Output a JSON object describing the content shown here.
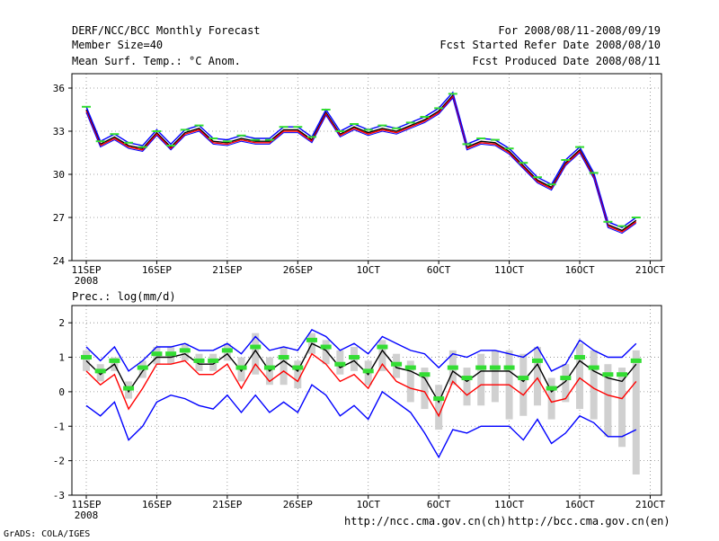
{
  "header": {
    "title": "DERF/NCC/BCC Monthly Forecast",
    "member_size": "Member Size=40",
    "variable": "Mean Surf. Temp.: °C Anom.",
    "period": "For 2008/08/11-2008/09/19",
    "started": "Fcst Started Refer Date 2008/08/10",
    "produced": "Fcst Produced Date 2008/08/11"
  },
  "footer": {
    "credit": "GrADS: COLA/IGES",
    "url_ncc": "http://ncc.cma.gov.cn(ch)",
    "url_bcc": "http://bcc.cma.gov.cn(en)"
  },
  "chart_data": [
    {
      "type": "line",
      "title": "Mean Surf. Temp.: °C Anom.",
      "ylim": [
        24,
        37
      ],
      "yticks": [
        24,
        27,
        30,
        33,
        36
      ],
      "x_tick_days": [
        0,
        5,
        10,
        15,
        20,
        25,
        30,
        35,
        40
      ],
      "x_tick_labels": [
        "11SEP",
        "16SEP",
        "21SEP",
        "26SEP",
        "1OCT",
        "6OCT",
        "11OCT",
        "16OCT",
        "21OCT"
      ],
      "year_label": "2008",
      "colors": {
        "mean": "#000000",
        "upper": "#0000ff",
        "lower": "#ff0000",
        "marker": "#33dd33"
      },
      "markers": [
        34.7,
        32.3,
        32.8,
        32.2,
        31.9,
        33.0,
        32.0,
        33.1,
        33.4,
        32.5,
        32.3,
        32.7,
        32.4,
        32.4,
        33.3,
        33.3,
        32.6,
        34.5,
        33.0,
        33.5,
        33.1,
        33.4,
        33.2,
        33.6,
        34.0,
        34.6,
        35.6,
        32.1,
        32.5,
        32.4,
        31.8,
        30.8,
        29.8,
        29.3,
        31.0,
        31.9,
        30.1,
        26.7,
        26.4,
        27.0
      ],
      "series": [
        {
          "name": "mean",
          "values": [
            34.5,
            32.1,
            32.6,
            32.0,
            31.8,
            32.9,
            31.9,
            32.9,
            33.2,
            32.3,
            32.2,
            32.5,
            32.3,
            32.3,
            33.1,
            33.1,
            32.4,
            34.3,
            32.8,
            33.3,
            32.9,
            33.2,
            33.0,
            33.4,
            33.8,
            34.4,
            35.5,
            31.9,
            32.3,
            32.2,
            31.6,
            30.6,
            29.6,
            29.1,
            30.8,
            31.7,
            29.9,
            26.5,
            26.1,
            26.8
          ]
        },
        {
          "name": "upper",
          "values": [
            34.7,
            32.3,
            32.8,
            32.2,
            32.0,
            33.1,
            32.1,
            33.1,
            33.4,
            32.5,
            32.4,
            32.7,
            32.5,
            32.5,
            33.3,
            33.3,
            32.6,
            34.5,
            33.0,
            33.5,
            33.1,
            33.4,
            33.2,
            33.6,
            34.0,
            34.6,
            35.7,
            32.1,
            32.5,
            32.4,
            31.8,
            30.8,
            29.8,
            29.3,
            31.0,
            31.9,
            30.1,
            26.7,
            26.3,
            27.0
          ]
        },
        {
          "name": "lower",
          "values": [
            34.4,
            32.0,
            32.5,
            31.9,
            31.7,
            32.8,
            31.8,
            32.8,
            33.1,
            32.2,
            32.1,
            32.4,
            32.2,
            32.2,
            33.0,
            33.0,
            32.3,
            34.2,
            32.7,
            33.2,
            32.8,
            33.1,
            32.9,
            33.3,
            33.7,
            34.3,
            35.4,
            31.8,
            32.2,
            32.1,
            31.5,
            30.5,
            29.5,
            29.0,
            30.7,
            31.6,
            29.8,
            26.4,
            26.0,
            26.7
          ]
        },
        {
          "name": "min",
          "values": [
            34.3,
            31.9,
            32.4,
            31.8,
            31.6,
            32.7,
            31.7,
            32.7,
            33.0,
            32.1,
            32.0,
            32.3,
            32.1,
            32.1,
            32.9,
            32.9,
            32.2,
            34.1,
            32.6,
            33.1,
            32.7,
            33.0,
            32.8,
            33.2,
            33.6,
            34.2,
            35.3,
            31.7,
            32.1,
            32.0,
            31.4,
            30.4,
            29.4,
            28.9,
            30.6,
            31.5,
            29.7,
            26.3,
            25.9,
            26.6
          ]
        }
      ]
    },
    {
      "type": "line",
      "title": "Prec.: log(mm/d)",
      "ylim": [
        -3,
        2.5
      ],
      "yticks": [
        -3,
        -2,
        -1,
        0,
        1,
        2
      ],
      "x_tick_days": [
        0,
        5,
        10,
        15,
        20,
        25,
        30,
        35,
        40
      ],
      "x_tick_labels": [
        "11SEP",
        "16SEP",
        "21SEP",
        "26SEP",
        "1OCT",
        "6OCT",
        "11OCT",
        "16OCT",
        "21OCT"
      ],
      "year_label": "2008",
      "colors": {
        "mean": "#000000",
        "upper": "#0000ff",
        "lower": "#ff0000",
        "marker": "#33dd33",
        "bar": "#d0d0d0"
      },
      "markers": [
        1.0,
        0.6,
        0.9,
        0.1,
        0.7,
        1.1,
        1.1,
        1.2,
        0.9,
        0.9,
        1.2,
        0.7,
        1.3,
        0.7,
        1.0,
        0.7,
        1.5,
        1.3,
        0.8,
        1.0,
        0.6,
        1.3,
        0.8,
        0.7,
        0.5,
        -0.2,
        0.7,
        0.4,
        0.7,
        0.7,
        0.7,
        0.4,
        0.9,
        0.1,
        0.4,
        1.0,
        0.7,
        0.5,
        0.5,
        0.9
      ],
      "bars": [
        [
          0.6,
          1.2
        ],
        [
          0.3,
          0.8
        ],
        [
          0.6,
          1.0
        ],
        [
          -0.2,
          0.3
        ],
        [
          0.4,
          0.9
        ],
        [
          0.8,
          1.3
        ],
        [
          0.8,
          1.3
        ],
        [
          0.9,
          1.4
        ],
        [
          0.6,
          1.1
        ],
        [
          0.6,
          1.1
        ],
        [
          0.9,
          1.4
        ],
        [
          0.3,
          1.0
        ],
        [
          0.5,
          1.7
        ],
        [
          0.2,
          1.0
        ],
        [
          0.2,
          1.3
        ],
        [
          0.1,
          0.9
        ],
        [
          1.1,
          1.7
        ],
        [
          0.8,
          1.5
        ],
        [
          0.5,
          1.2
        ],
        [
          0.6,
          1.3
        ],
        [
          0.2,
          0.9
        ],
        [
          0.6,
          1.5
        ],
        [
          0.4,
          1.1
        ],
        [
          -0.3,
          0.9
        ],
        [
          -0.5,
          0.7
        ],
        [
          -1.1,
          0.2
        ],
        [
          0.2,
          1.2
        ],
        [
          -0.4,
          0.7
        ],
        [
          -0.4,
          1.1
        ],
        [
          -0.3,
          1.2
        ],
        [
          -0.8,
          1.2
        ],
        [
          -0.7,
          1.1
        ],
        [
          -0.4,
          1.3
        ],
        [
          -0.8,
          0.4
        ],
        [
          -0.3,
          0.8
        ],
        [
          -0.5,
          1.4
        ],
        [
          -0.8,
          1.2
        ],
        [
          -1.3,
          0.8
        ],
        [
          -1.6,
          0.7
        ],
        [
          -2.4,
          1.2
        ]
      ],
      "series": [
        {
          "name": "mean",
          "values": [
            0.9,
            0.5,
            0.8,
            0.0,
            0.6,
            1.0,
            1.0,
            1.1,
            0.8,
            0.8,
            1.1,
            0.6,
            1.2,
            0.6,
            0.9,
            0.6,
            1.4,
            1.2,
            0.7,
            0.9,
            0.5,
            1.2,
            0.7,
            0.6,
            0.4,
            -0.3,
            0.6,
            0.3,
            0.6,
            0.6,
            0.6,
            0.3,
            0.8,
            0.0,
            0.3,
            0.9,
            0.6,
            0.4,
            0.3,
            0.8
          ]
        },
        {
          "name": "upper",
          "values": [
            1.3,
            0.9,
            1.3,
            0.6,
            0.9,
            1.3,
            1.3,
            1.4,
            1.2,
            1.2,
            1.4,
            1.1,
            1.6,
            1.2,
            1.3,
            1.2,
            1.8,
            1.6,
            1.2,
            1.4,
            1.1,
            1.6,
            1.4,
            1.2,
            1.1,
            0.7,
            1.1,
            1.0,
            1.2,
            1.2,
            1.1,
            1.0,
            1.3,
            0.6,
            0.8,
            1.5,
            1.2,
            1.0,
            1.0,
            1.4
          ]
        },
        {
          "name": "lower",
          "values": [
            0.6,
            0.2,
            0.5,
            -0.5,
            0.1,
            0.8,
            0.8,
            0.9,
            0.5,
            0.5,
            0.8,
            0.1,
            0.8,
            0.3,
            0.6,
            0.3,
            1.1,
            0.8,
            0.3,
            0.5,
            0.1,
            0.8,
            0.3,
            0.1,
            0.0,
            -0.7,
            0.3,
            -0.1,
            0.2,
            0.2,
            0.2,
            -0.1,
            0.4,
            -0.3,
            -0.2,
            0.4,
            0.1,
            -0.1,
            -0.2,
            0.3
          ]
        },
        {
          "name": "bottom",
          "values": [
            -0.4,
            -0.7,
            -0.3,
            -1.4,
            -1.0,
            -0.3,
            -0.1,
            -0.2,
            -0.4,
            -0.5,
            -0.1,
            -0.6,
            -0.1,
            -0.6,
            -0.3,
            -0.6,
            0.2,
            -0.1,
            -0.7,
            -0.4,
            -0.8,
            0.0,
            -0.3,
            -0.6,
            -1.2,
            -1.9,
            -1.1,
            -1.2,
            -1.0,
            -1.0,
            -1.0,
            -1.4,
            -0.8,
            -1.5,
            -1.2,
            -0.7,
            -0.9,
            -1.3,
            -1.3,
            -1.1
          ]
        }
      ]
    }
  ]
}
